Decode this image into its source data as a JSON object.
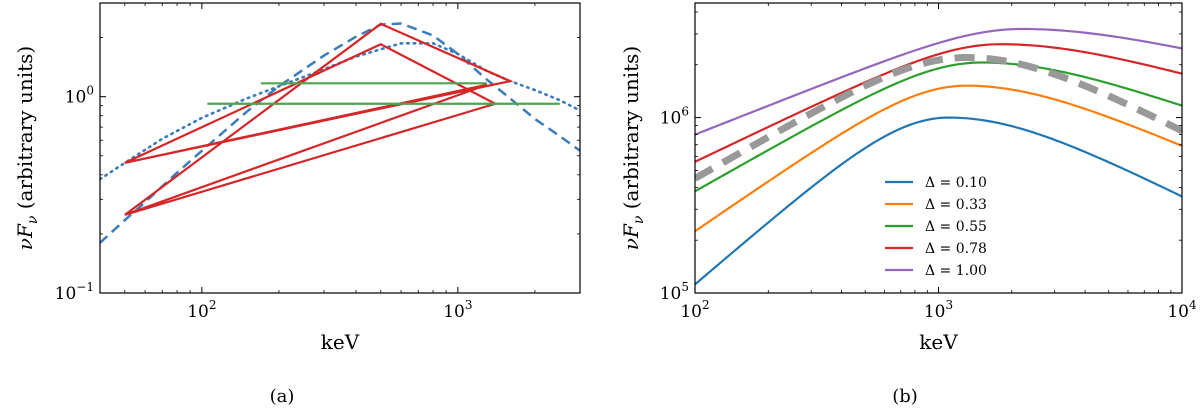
{
  "chart_data": [
    {
      "id": "a",
      "type": "line",
      "caption": "(a)",
      "xlabel": "keV",
      "ylabel_math": "νF",
      "ylabel_sub": "ν",
      "ylabel_text": "(arbitrary units)",
      "xscale": "log",
      "yscale": "log",
      "xlim": [
        40,
        3000
      ],
      "ylim": [
        0.1,
        3.0
      ],
      "xticks": [
        {
          "value": 100,
          "base": "10",
          "exp": "2"
        },
        {
          "value": 1000,
          "base": "10",
          "exp": "3"
        }
      ],
      "yticks": [
        {
          "value": 0.1,
          "base": "10",
          "exp": "−1"
        },
        {
          "value": 1.0,
          "base": "10",
          "exp": "0"
        }
      ],
      "series": [
        {
          "name": "dashed model",
          "style": "dashed",
          "color": "#3b7dba",
          "points": [
            [
              40,
              0.18
            ],
            [
              50,
              0.235
            ],
            [
              60,
              0.29
            ],
            [
              80,
              0.41
            ],
            [
              100,
              0.53
            ],
            [
              150,
              0.84
            ],
            [
              200,
              1.13
            ],
            [
              300,
              1.62
            ],
            [
              400,
              2.02
            ],
            [
              500,
              2.33
            ],
            [
              600,
              2.36
            ],
            [
              800,
              2.05
            ],
            [
              1000,
              1.65
            ],
            [
              1300,
              1.22
            ],
            [
              1600,
              0.98
            ],
            [
              2000,
              0.77
            ],
            [
              2500,
              0.63
            ],
            [
              3000,
              0.53
            ]
          ]
        },
        {
          "name": "dotted model",
          "style": "dotted",
          "color": "#3b7dba",
          "points": [
            [
              40,
              0.38
            ],
            [
              50,
              0.46
            ],
            [
              70,
              0.61
            ],
            [
              100,
              0.78
            ],
            [
              150,
              0.98
            ],
            [
              200,
              1.13
            ],
            [
              300,
              1.38
            ],
            [
              400,
              1.6
            ],
            [
              600,
              1.87
            ],
            [
              800,
              1.87
            ],
            [
              1000,
              1.65
            ],
            [
              1300,
              1.35
            ],
            [
              1600,
              1.2
            ],
            [
              2000,
              1.08
            ],
            [
              2500,
              0.96
            ],
            [
              3000,
              0.85
            ]
          ]
        },
        {
          "name": "red zigzag",
          "style": "solid",
          "color": "#d62728",
          "points": [
            [
              50,
              0.25
            ],
            [
              500,
              2.35
            ],
            [
              1600,
              1.2
            ],
            [
              50,
              0.46
            ],
            [
              500,
              1.85
            ],
            [
              1400,
              0.92
            ],
            [
              50,
              0.25
            ],
            [
              1300,
              1.15
            ],
            [
              50,
              0.46
            ]
          ]
        },
        {
          "name": "green upper",
          "style": "solid",
          "color": "#4ca64c",
          "points": [
            [
              170,
              1.17
            ],
            [
              1300,
              1.17
            ]
          ]
        },
        {
          "name": "green lower",
          "style": "solid",
          "color": "#4ca64c",
          "points": [
            [
              105,
              0.92
            ],
            [
              2500,
              0.92
            ]
          ]
        }
      ]
    },
    {
      "id": "b",
      "type": "line",
      "caption": "(b)",
      "xlabel": "keV",
      "ylabel_math": "νF",
      "ylabel_sub": "ν",
      "ylabel_text": "(arbitrary units)",
      "xscale": "log",
      "yscale": "log",
      "xlim": [
        100,
        10000
      ],
      "ylim": [
        100000,
        4500000
      ],
      "xticks": [
        {
          "value": 100,
          "base": "10",
          "exp": "2"
        },
        {
          "value": 1000,
          "base": "10",
          "exp": "3"
        },
        {
          "value": 10000,
          "base": "10",
          "exp": "4"
        }
      ],
      "yticks": [
        {
          "value": 100000,
          "base": "10",
          "exp": "5"
        },
        {
          "value": 1000000,
          "base": "10",
          "exp": "6"
        }
      ],
      "legend_position": "lower-right",
      "series": [
        {
          "name": "Δ = 0.10",
          "delta": 0.1,
          "color": "#1f77b4",
          "peak_x": 1100,
          "peak_y": 1000000,
          "start_y": 112000,
          "end_y": 355000
        },
        {
          "name": "Δ = 0.33",
          "delta": 0.33,
          "color": "#ff7f0e",
          "peak_x": 1300,
          "peak_y": 1520000,
          "start_y": 225000,
          "end_y": 690000
        },
        {
          "name": "Δ = 0.55",
          "delta": 0.55,
          "color": "#2ca02c",
          "peak_x": 1500,
          "peak_y": 2060000,
          "start_y": 380000,
          "end_y": 1170000
        },
        {
          "name": "Δ = 0.78",
          "delta": 0.78,
          "color": "#d62728",
          "peak_x": 1800,
          "peak_y": 2620000,
          "start_y": 560000,
          "end_y": 1780000
        },
        {
          "name": "Δ = 1.00",
          "delta": 1.0,
          "color": "#9467bd",
          "peak_x": 2200,
          "peak_y": 3200000,
          "start_y": 800000,
          "end_y": 2480000
        },
        {
          "name": "gray dashed",
          "color": "#999999",
          "dashed": true,
          "peak_x": 1300,
          "peak_y": 2200000,
          "start_y": 450000,
          "end_y": 840000
        }
      ]
    }
  ]
}
